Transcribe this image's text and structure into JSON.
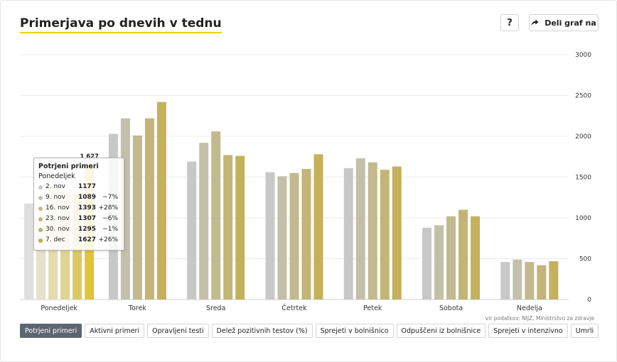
{
  "header": {
    "title": "Primerjava po dnevih v tednu",
    "help_label": "?",
    "share_label": "Deli graf na"
  },
  "chart_data": {
    "type": "bar",
    "categories": [
      "Ponedeljek",
      "Torek",
      "Sreda",
      "Četrtek",
      "Petek",
      "Sobota",
      "Nedelja"
    ],
    "series": [
      {
        "name": "2. nov",
        "color": "#c8c8c8",
        "values": [
          1177,
          2030,
          1690,
          1560,
          1610,
          880,
          460
        ]
      },
      {
        "name": "9. nov",
        "color": "#c3c0aa",
        "values": [
          1089,
          2220,
          1920,
          1510,
          1730,
          910,
          490
        ]
      },
      {
        "name": "16. nov",
        "color": "#c2b98f",
        "values": [
          1393,
          2010,
          2060,
          1550,
          1680,
          1020,
          460
        ]
      },
      {
        "name": "23. nov",
        "color": "#c3b576",
        "values": [
          1307,
          2220,
          1770,
          1600,
          1590,
          1100,
          420
        ]
      },
      {
        "name": "30. nov",
        "color": "#c4b15b",
        "values": [
          1295,
          2420,
          1760,
          1780,
          1630,
          1020,
          470
        ]
      },
      {
        "name": "7. dec",
        "color": "#c3aa40",
        "values": [
          1627,
          null,
          null,
          null,
          null,
          null,
          null
        ]
      }
    ],
    "highlight": {
      "category": "Ponedeljek",
      "colors": [
        "#dedede",
        "#e4e1cc",
        "#e3dcb0",
        "#e0d494",
        "#dcc864",
        "#e0c43a"
      ]
    },
    "data_label": "1 627",
    "ylim": [
      0,
      3000
    ],
    "yticks": [
      "0",
      "500",
      "1000",
      "1500",
      "2000",
      "2500",
      "3000"
    ],
    "y_axis_side": "right",
    "grid": true,
    "xlabel": "",
    "ylabel": ""
  },
  "tooltip": {
    "title": "Potrjeni primeri",
    "subtitle": "Ponedeljek",
    "rows": [
      {
        "date": "2. nov",
        "value": "1177",
        "change": "",
        "color": "#c8c8c8"
      },
      {
        "date": "9. nov",
        "value": "1089",
        "change": "−7%",
        "color": "#c3c0aa"
      },
      {
        "date": "16. nov",
        "value": "1393",
        "change": "+28%",
        "color": "#c2b98f"
      },
      {
        "date": "23. nov",
        "value": "1307",
        "change": "−6%",
        "color": "#c3b576"
      },
      {
        "date": "30. nov",
        "value": "1295",
        "change": "−1%",
        "color": "#c4b15b"
      },
      {
        "date": "7. dec",
        "value": "1627",
        "change": "+26%",
        "color": "#c3aa40"
      }
    ]
  },
  "source": "vir podatkov: NIJZ, Ministrstvo za zdravje",
  "tabs": [
    {
      "label": "Potrjeni primeri",
      "active": true
    },
    {
      "label": "Aktivni primeri",
      "active": false
    },
    {
      "label": "Opravljeni testi",
      "active": false
    },
    {
      "label": "Delež pozitivnih testov (%)",
      "active": false
    },
    {
      "label": "Sprejeti v bolnišnico",
      "active": false
    },
    {
      "label": "Odpuščeni iz bolnišnice",
      "active": false
    },
    {
      "label": "Sprejeti v intenzivno",
      "active": false
    },
    {
      "label": "Umrli",
      "active": false
    }
  ]
}
